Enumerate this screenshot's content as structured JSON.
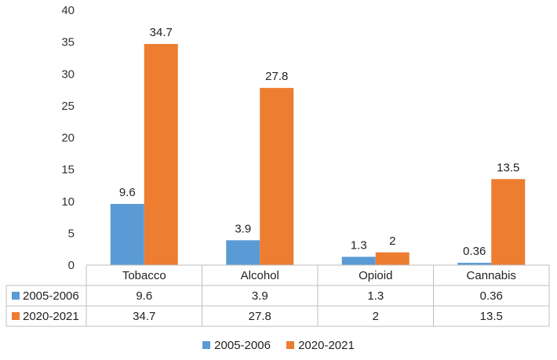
{
  "chart_data": {
    "type": "bar",
    "categories": [
      "Tobacco",
      "Alcohol",
      "Opioid",
      "Cannabis"
    ],
    "series": [
      {
        "name": "2005-2006",
        "values": [
          9.6,
          3.9,
          1.3,
          0.36
        ],
        "labels": [
          "9.6",
          "3.9",
          "1.3",
          "0.36"
        ],
        "color": "#5B9BD5"
      },
      {
        "name": "2020-2021",
        "values": [
          34.7,
          27.8,
          2,
          13.5
        ],
        "labels": [
          "34.7",
          "27.8",
          "2",
          "13.5"
        ],
        "color": "#ED7D31"
      }
    ],
    "ylim": [
      0,
      40
    ],
    "yticks": [
      "0",
      "5",
      "10",
      "15",
      "20",
      "25",
      "30",
      "35",
      "40"
    ],
    "grid": false,
    "data_table": true,
    "legend": "bottom"
  }
}
